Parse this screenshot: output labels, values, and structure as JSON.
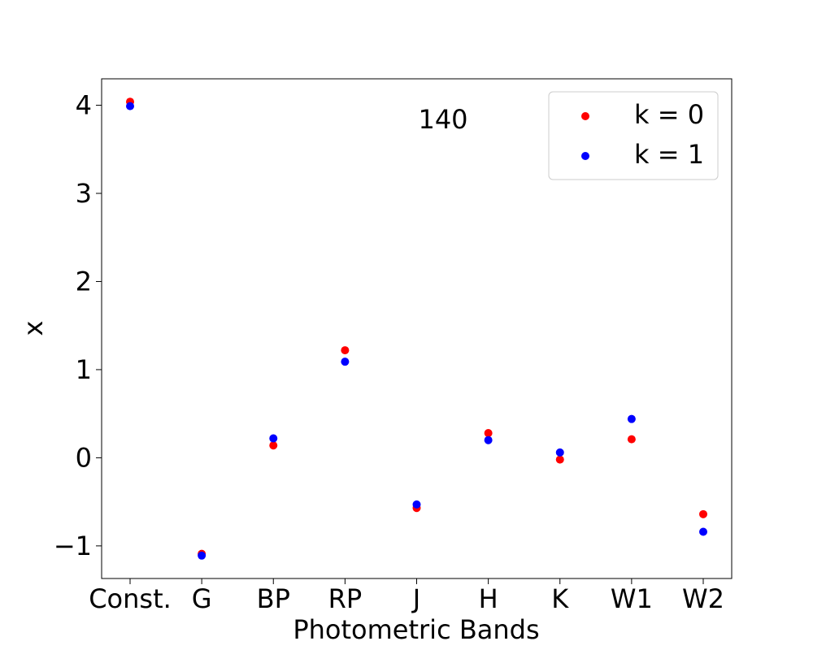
{
  "chart_data": {
    "type": "scatter",
    "title": "",
    "annotation": "140",
    "xlabel": "Photometric Bands",
    "ylabel": "x",
    "categories": [
      "Const.",
      "G",
      "BP",
      "RP",
      "J",
      "H",
      "K",
      "W1",
      "W2"
    ],
    "ylim": [
      -1.37,
      4.3
    ],
    "yticks": [
      -1,
      0,
      1,
      2,
      3,
      4
    ],
    "ytick_labels": [
      "−1",
      "0",
      "1",
      "2",
      "3",
      "4"
    ],
    "grid": false,
    "legend_position": "top-right",
    "series": [
      {
        "name": "k = 0",
        "color": "#ff0000",
        "values": [
          4.04,
          -1.09,
          0.14,
          1.22,
          -0.57,
          0.28,
          -0.02,
          0.21,
          -0.64
        ]
      },
      {
        "name": "k = 1",
        "color": "#0000ff",
        "values": [
          3.99,
          -1.11,
          0.22,
          1.09,
          -0.53,
          0.2,
          0.06,
          0.44,
          -0.84
        ]
      }
    ]
  }
}
